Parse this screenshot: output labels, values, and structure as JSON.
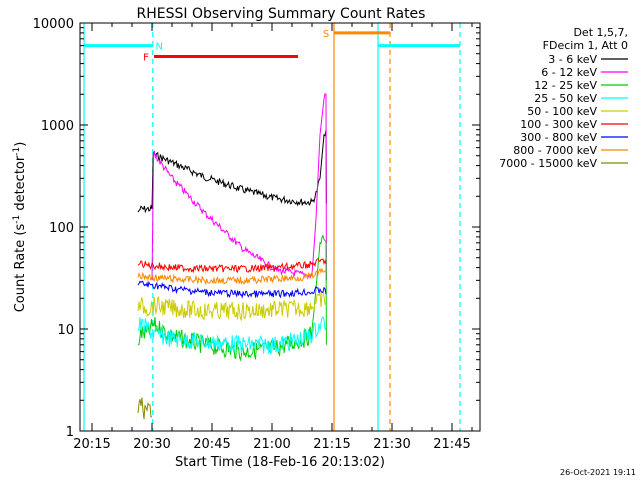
{
  "chart_data": {
    "type": "line",
    "title": "RHESSI Observing Summary Count Rates",
    "xlabel": "Start Time (18-Feb-16 20:13:02)",
    "ylabel": "Count Rate (s⁻¹ detector⁻¹)",
    "ylabel_main": "Count Rate (s",
    "ylabel_sup1": "-1",
    "ylabel_mid": " detector",
    "ylabel_sup2": "-1",
    "ylabel_end": ")",
    "yscale": "log",
    "ylim": [
      1,
      10000
    ],
    "xlim_minutes": [
      -1,
      99
    ],
    "x_ticks": [
      {
        "label": "20:15",
        "min": 2
      },
      {
        "label": "20:30",
        "min": 17
      },
      {
        "label": "20:45",
        "min": 32
      },
      {
        "label": "21:00",
        "min": 47
      },
      {
        "label": "21:15",
        "min": 62
      },
      {
        "label": "21:30",
        "min": 77
      },
      {
        "label": "21:45",
        "min": 92
      }
    ],
    "y_ticks": [
      {
        "label": "1",
        "v": 1
      },
      {
        "label": "10",
        "v": 10
      },
      {
        "label": "100",
        "v": 100
      },
      {
        "label": "1000",
        "v": 1000
      },
      {
        "label": "10000",
        "v": 10000
      }
    ],
    "legend_header": [
      "Det 1,5,7,",
      "FDecim 1, Att 0"
    ],
    "legend_position": "right",
    "series": [
      {
        "name": "3 - 6 keV",
        "color": "#000000",
        "points": [
          [
            13.5,
            140
          ],
          [
            14,
            150
          ],
          [
            16,
            150
          ],
          [
            17,
            150
          ],
          [
            17.3,
            520
          ],
          [
            22,
            430
          ],
          [
            30,
            310
          ],
          [
            40,
            230
          ],
          [
            48,
            190
          ],
          [
            55,
            175
          ],
          [
            57,
            175
          ],
          [
            58,
            210
          ],
          [
            59,
            300
          ],
          [
            60,
            800
          ],
          [
            60.5,
            900
          ],
          [
            60.6,
            170
          ]
        ]
      },
      {
        "name": "6 - 12 keV",
        "color": "#ff00ff",
        "points": [
          [
            17,
            30
          ],
          [
            17.4,
            530
          ],
          [
            22,
            300
          ],
          [
            30,
            140
          ],
          [
            40,
            60
          ],
          [
            48,
            38
          ],
          [
            55,
            34
          ],
          [
            57,
            33
          ],
          [
            58,
            120
          ],
          [
            59,
            800
          ],
          [
            60,
            1800
          ],
          [
            60.5,
            2000
          ],
          [
            60.6,
            30
          ]
        ]
      },
      {
        "name": "12 - 25 keV",
        "color": "#00cc00",
        "points": [
          [
            13.5,
            7
          ],
          [
            14,
            9
          ],
          [
            16,
            9
          ],
          [
            17.3,
            11
          ],
          [
            22,
            8.5
          ],
          [
            30,
            7
          ],
          [
            40,
            6
          ],
          [
            48,
            6.5
          ],
          [
            55,
            8
          ],
          [
            57,
            9
          ],
          [
            58,
            25
          ],
          [
            59,
            70
          ],
          [
            60,
            80
          ],
          [
            60.5,
            75
          ],
          [
            60.6,
            7
          ]
        ]
      },
      {
        "name": "25 - 50 keV",
        "color": "#00ffff",
        "points": [
          [
            13.5,
            10
          ],
          [
            14,
            11
          ],
          [
            16,
            10
          ],
          [
            17.3,
            9
          ],
          [
            22,
            8
          ],
          [
            30,
            7.5
          ],
          [
            40,
            7
          ],
          [
            48,
            7
          ],
          [
            55,
            8
          ],
          [
            57,
            9
          ],
          [
            58,
            10
          ],
          [
            59,
            11
          ],
          [
            60,
            12
          ],
          [
            60.5,
            11
          ]
        ]
      },
      {
        "name": "50 - 100 keV",
        "color": "#cccc00",
        "points": [
          [
            13.5,
            15
          ],
          [
            14,
            17
          ],
          [
            16,
            16
          ],
          [
            17.3,
            17
          ],
          [
            22,
            16
          ],
          [
            30,
            15
          ],
          [
            40,
            15
          ],
          [
            48,
            15.5
          ],
          [
            55,
            16
          ],
          [
            57,
            17
          ],
          [
            58,
            18
          ],
          [
            59,
            19
          ],
          [
            60,
            20
          ],
          [
            60.5,
            19
          ]
        ]
      },
      {
        "name": "100 - 300 keV",
        "color": "#ff0000",
        "points": [
          [
            13.5,
            42
          ],
          [
            14,
            44
          ],
          [
            16,
            42
          ],
          [
            17.3,
            42
          ],
          [
            22,
            40
          ],
          [
            30,
            39
          ],
          [
            40,
            39
          ],
          [
            48,
            40
          ],
          [
            55,
            42
          ],
          [
            57,
            43
          ],
          [
            58,
            45
          ],
          [
            59,
            46
          ],
          [
            60,
            47
          ],
          [
            60.5,
            45
          ]
        ]
      },
      {
        "name": "300 - 800 keV",
        "color": "#0000ff",
        "points": [
          [
            13.5,
            27
          ],
          [
            14,
            28
          ],
          [
            16,
            27
          ],
          [
            17.3,
            27
          ],
          [
            22,
            25
          ],
          [
            30,
            23
          ],
          [
            40,
            22
          ],
          [
            48,
            22
          ],
          [
            55,
            23
          ],
          [
            57,
            23
          ],
          [
            58,
            24
          ],
          [
            59,
            24
          ],
          [
            60,
            24
          ],
          [
            60.5,
            23
          ]
        ]
      },
      {
        "name": "800 - 7000 keV",
        "color": "#ff8800",
        "points": [
          [
            13.5,
            32
          ],
          [
            14,
            33
          ],
          [
            16,
            32
          ],
          [
            17.3,
            32
          ],
          [
            22,
            31
          ],
          [
            30,
            30
          ],
          [
            40,
            30
          ],
          [
            48,
            31
          ],
          [
            55,
            32
          ],
          [
            57,
            33
          ],
          [
            58,
            35
          ],
          [
            59,
            36
          ],
          [
            60,
            37
          ],
          [
            60.5,
            36
          ]
        ]
      },
      {
        "name": "7000 - 15000 keV",
        "color": "#888800",
        "points": [
          [
            13.5,
            1.5
          ],
          [
            14,
            2
          ],
          [
            15,
            1.6
          ],
          [
            16,
            1.8
          ],
          [
            17,
            1.5
          ]
        ]
      }
    ],
    "vertical_markers": [
      {
        "min": 0,
        "color": "#00ffff",
        "style": "solid"
      },
      {
        "min": 17.2,
        "color": "#00ffff",
        "style": "dashed"
      },
      {
        "min": 62.5,
        "color": "#ff8800",
        "style": "solid"
      },
      {
        "min": 73.5,
        "color": "#00ffff",
        "style": "solid"
      },
      {
        "min": 76.5,
        "color": "#ff8800",
        "style": "dashed"
      },
      {
        "min": 94,
        "color": "#00ffff",
        "style": "dashed"
      }
    ],
    "flag_bars": [
      {
        "label": "N",
        "color": "#00ffff",
        "y": 6000,
        "segments": [
          [
            0,
            17.2
          ],
          [
            73.5,
            94
          ]
        ],
        "label_min": 18.8
      },
      {
        "label": "F",
        "color": "#ff0000",
        "y": 4700,
        "segments": [
          [
            17.5,
            53.5
          ]
        ],
        "label_min": 15.5
      },
      {
        "label": "S",
        "color": "#ff8800",
        "y": 8000,
        "segments": [
          [
            62.5,
            76.5
          ]
        ],
        "label_min": 60.5
      }
    ]
  },
  "footer_timestamp": "26-Oct-2021 19:11"
}
